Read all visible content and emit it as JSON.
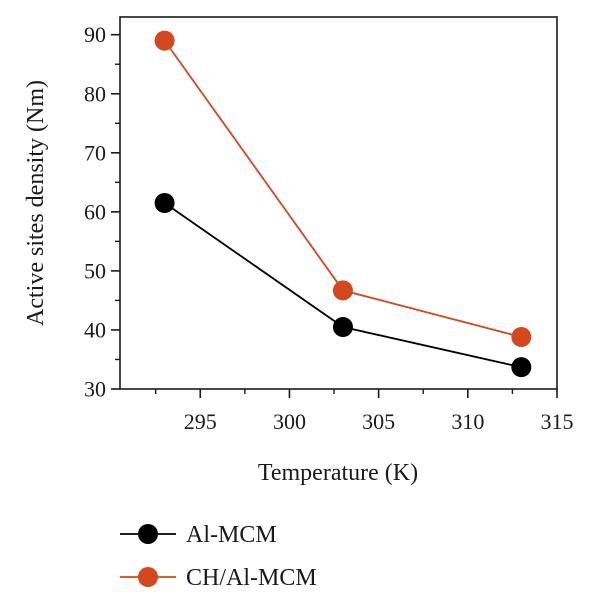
{
  "chart_data": {
    "type": "line",
    "title": "",
    "xlabel": "Temperature (K)",
    "ylabel": "Active sites density (Nm)",
    "xlim": [
      290.5,
      315
    ],
    "ylim": [
      30,
      93
    ],
    "xticks": [
      295,
      300,
      305,
      310,
      315
    ],
    "yticks": [
      30,
      40,
      50,
      60,
      70,
      80,
      90
    ],
    "x": [
      293,
      303,
      313
    ],
    "grid": false,
    "legend_position": "bottom-left",
    "series": [
      {
        "name": "Al-MCM",
        "color": "#000000",
        "values": [
          61.5,
          40.5,
          33.7
        ]
      },
      {
        "name": "CH/Al-MCM",
        "color": "#d4471f",
        "values": [
          89.0,
          46.7,
          38.8
        ]
      }
    ]
  }
}
